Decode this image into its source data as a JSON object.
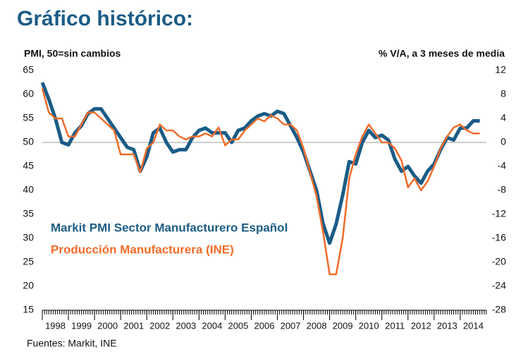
{
  "chart_data": {
    "type": "line",
    "title": "Gráfico histórico:",
    "y_label": "PMI, 50=sin cambios",
    "y2_label": "% V/A, a 3 meses de media",
    "source": "Fuentes: Markit, INE",
    "x": [
      1998.0,
      1998.25,
      1998.5,
      1998.75,
      1999.0,
      1999.25,
      1999.5,
      1999.75,
      2000.0,
      2000.25,
      2000.5,
      2000.75,
      2001.0,
      2001.25,
      2001.5,
      2001.75,
      2002.0,
      2002.25,
      2002.5,
      2002.75,
      2003.0,
      2003.25,
      2003.5,
      2003.75,
      2004.0,
      2004.25,
      2004.5,
      2004.75,
      2005.0,
      2005.25,
      2005.5,
      2005.75,
      2006.0,
      2006.25,
      2006.5,
      2006.75,
      2007.0,
      2007.25,
      2007.5,
      2007.75,
      2008.0,
      2008.25,
      2008.5,
      2008.75,
      2009.0,
      2009.25,
      2009.5,
      2009.75,
      2010.0,
      2010.25,
      2010.5,
      2010.75,
      2011.0,
      2011.25,
      2011.5,
      2011.75,
      2012.0,
      2012.25,
      2012.5,
      2012.75,
      2013.0,
      2013.25,
      2013.5,
      2013.75,
      2014.0,
      2014.25,
      2014.5,
      2014.75
    ],
    "series": [
      {
        "name": "Markit PMI Sector Manufacturero Español",
        "color": "#1a5c86",
        "axis": "y",
        "values": [
          62.5,
          59,
          55,
          50,
          49.5,
          52,
          53.5,
          56,
          57,
          57,
          55,
          53,
          51,
          49,
          48.5,
          44,
          47,
          52,
          53,
          50,
          48,
          48.5,
          48.5,
          51,
          52.5,
          53,
          52,
          52,
          52,
          50,
          52.5,
          53,
          54.5,
          55.5,
          56,
          55.5,
          56.5,
          56,
          53.5,
          51,
          48,
          44,
          40,
          33,
          29,
          33,
          39,
          46,
          45.5,
          50,
          52.5,
          51,
          51.5,
          50.5,
          46.5,
          44,
          45,
          43,
          41.5,
          44,
          45.5,
          48.5,
          51,
          50.5,
          53,
          53,
          54.5,
          54.5
        ]
      },
      {
        "name": "Producción Manufacturera (INE)",
        "color": "#f26b2a",
        "axis": "y2",
        "values": [
          9,
          5,
          4,
          4,
          1,
          1,
          3,
          5,
          5,
          4,
          3,
          2,
          -2,
          -2,
          -2,
          -5,
          -1,
          0,
          3,
          2,
          2,
          1,
          0.5,
          1,
          1,
          1.5,
          1,
          2.5,
          -0.5,
          0.5,
          0.5,
          2,
          3,
          4,
          3.5,
          4.5,
          4,
          3,
          3,
          2,
          -1,
          -5,
          -9,
          -15,
          -22,
          -22,
          -16,
          -6,
          -2,
          1,
          3,
          1.5,
          0,
          0,
          -1,
          -3,
          -7.5,
          -6,
          -8,
          -6.5,
          -4,
          -1,
          1,
          2.5,
          3,
          2,
          1.5,
          1.5
        ]
      }
    ],
    "xlim": [
      1998,
      2015
    ],
    "xticks": [
      1998,
      1999,
      2000,
      2001,
      2002,
      2003,
      2004,
      2005,
      2006,
      2007,
      2008,
      2009,
      2010,
      2011,
      2012,
      2013,
      2014
    ],
    "ylim": [
      15,
      65
    ],
    "yticks": [
      15,
      20,
      25,
      30,
      35,
      40,
      45,
      50,
      55,
      60,
      65
    ],
    "y2lim": [
      -28,
      12
    ],
    "y2ticks": [
      -28,
      -24,
      -20,
      -16,
      -12,
      -8,
      -4,
      0,
      4,
      8,
      12
    ],
    "reference_line": 50
  }
}
